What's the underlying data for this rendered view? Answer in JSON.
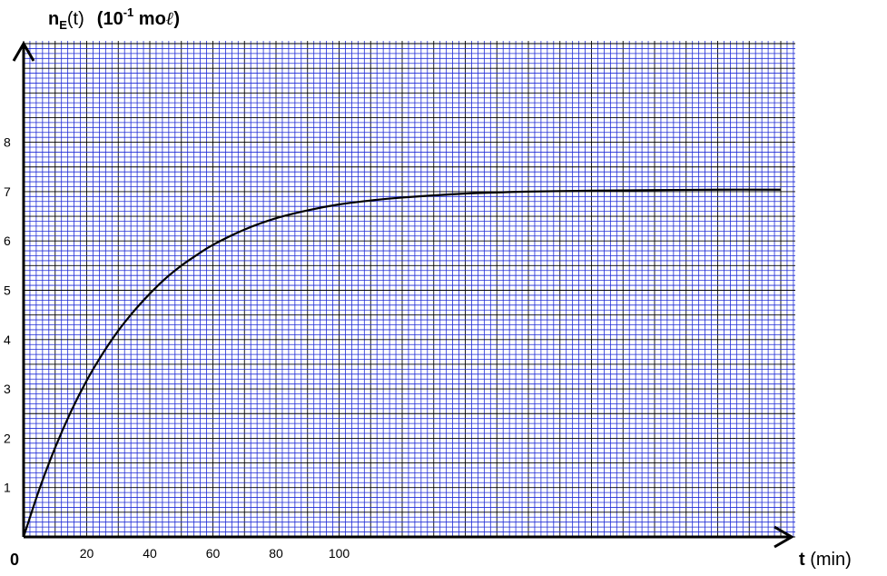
{
  "chart_data": {
    "type": "line",
    "ylabel": {
      "prefix": "n",
      "subscript": "E",
      "arg": "(t)",
      "unit_open": "(10",
      "unit_exp": "-1",
      "unit_rest": " mo",
      "unit_ell": "ℓ",
      "unit_close": ")"
    },
    "xlabel": {
      "bold": "t",
      "rest": " (min)"
    },
    "origin_label": "0",
    "x_ticks": [
      "20",
      "40",
      "60",
      "80",
      "100"
    ],
    "y_ticks": [
      "1",
      "2",
      "3",
      "4",
      "5",
      "6",
      "7",
      "8"
    ],
    "xlim": [
      0,
      240
    ],
    "ylim": [
      0,
      9.5
    ],
    "grid": true,
    "grid_color": "#1f2bd6",
    "major_grid_color": "#000000",
    "curve_color": "#000000",
    "series": [
      {
        "x": [
          0,
          5,
          10,
          15,
          20,
          25,
          30,
          35,
          40,
          45,
          50,
          55,
          60,
          70,
          80,
          90,
          100,
          110,
          120,
          140,
          160,
          180,
          200,
          220,
          240
        ],
        "y": [
          0,
          0.97,
          1.81,
          2.54,
          3.17,
          3.71,
          4.18,
          4.58,
          4.93,
          5.24,
          5.5,
          5.72,
          5.92,
          6.23,
          6.46,
          6.62,
          6.74,
          6.82,
          6.88,
          6.96,
          7.0,
          7.02,
          7.03,
          7.04,
          7.04
        ]
      }
    ]
  }
}
